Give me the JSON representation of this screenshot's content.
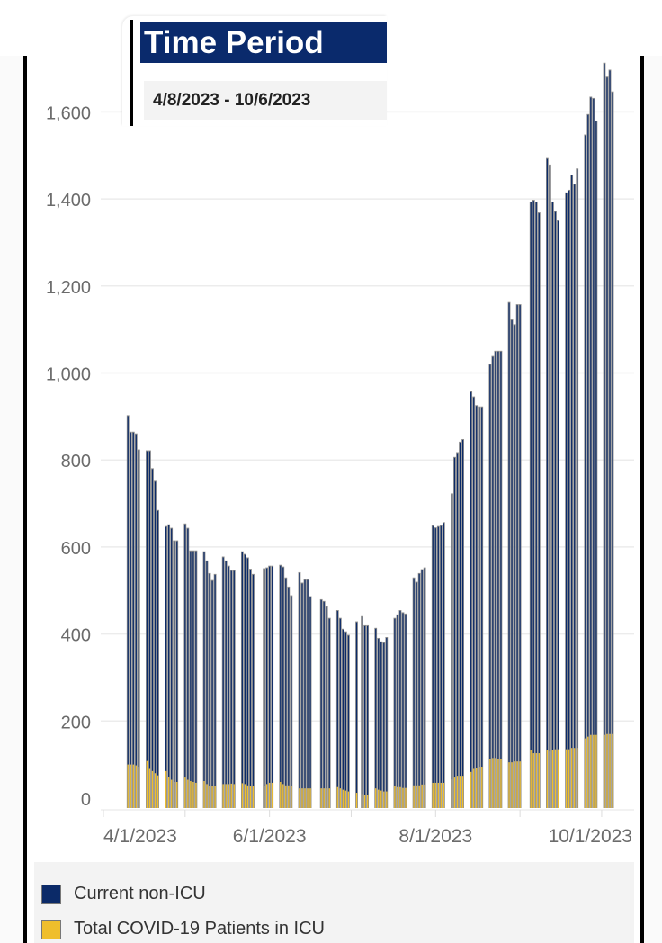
{
  "filter": {
    "title": "Time Period",
    "value": "4/8/2023 - 10/6/2023"
  },
  "colors": {
    "non_icu": "#0b2a68",
    "icu": "#efbe2c",
    "bar_edge": "#8c8c8c"
  },
  "chart_data": {
    "type": "bar",
    "stacked": true,
    "title": "",
    "xlabel": "",
    "ylabel": "",
    "ylim": [
      0,
      1700
    ],
    "grid": true,
    "legend_position": "bottom",
    "y_ticks": [
      0,
      200,
      400,
      600,
      800,
      1000,
      1200,
      1400,
      1600
    ],
    "y_tick_labels": [
      "0",
      "200",
      "400",
      "600",
      "800",
      "1,000",
      "1,200",
      "1,400",
      "1,600"
    ],
    "x_tick_dates": [
      "2023-04-01",
      "2023-05-01",
      "2023-06-01",
      "2023-07-01",
      "2023-08-01",
      "2023-09-01",
      "2023-10-01"
    ],
    "x_tick_labels": [
      "4/1/2023",
      "",
      "6/1/2023",
      "",
      "8/1/2023",
      "",
      "10/1/2023"
    ],
    "series": [
      {
        "name": "Current non-ICU",
        "key": "non_icu"
      },
      {
        "name": "Total COVID-19 Patients in ICU",
        "key": "icu"
      }
    ],
    "points": [
      {
        "date": "2023-04-10",
        "non_icu": 803,
        "icu": 100
      },
      {
        "date": "2023-04-11",
        "non_icu": 765,
        "icu": 100
      },
      {
        "date": "2023-04-12",
        "non_icu": 765,
        "icu": 100
      },
      {
        "date": "2023-04-13",
        "non_icu": 763,
        "icu": 98
      },
      {
        "date": "2023-04-14",
        "non_icu": 729,
        "icu": 95
      },
      {
        "date": "2023-04-17",
        "non_icu": 714,
        "icu": 108
      },
      {
        "date": "2023-04-18",
        "non_icu": 732,
        "icu": 90
      },
      {
        "date": "2023-04-19",
        "non_icu": 696,
        "icu": 85
      },
      {
        "date": "2023-04-20",
        "non_icu": 672,
        "icu": 80
      },
      {
        "date": "2023-04-21",
        "non_icu": 610,
        "icu": 75
      },
      {
        "date": "2023-04-24",
        "non_icu": 563,
        "icu": 85
      },
      {
        "date": "2023-04-25",
        "non_icu": 580,
        "icu": 72
      },
      {
        "date": "2023-04-26",
        "non_icu": 579,
        "icu": 65
      },
      {
        "date": "2023-04-27",
        "non_icu": 555,
        "icu": 60
      },
      {
        "date": "2023-04-28",
        "non_icu": 555,
        "icu": 60
      },
      {
        "date": "2023-05-01",
        "non_icu": 584,
        "icu": 70
      },
      {
        "date": "2023-05-02",
        "non_icu": 579,
        "icu": 65
      },
      {
        "date": "2023-05-03",
        "non_icu": 530,
        "icu": 62
      },
      {
        "date": "2023-05-04",
        "non_icu": 532,
        "icu": 60
      },
      {
        "date": "2023-05-05",
        "non_icu": 534,
        "icu": 58
      },
      {
        "date": "2023-05-08",
        "non_icu": 528,
        "icu": 62
      },
      {
        "date": "2023-05-09",
        "non_icu": 514,
        "icu": 55
      },
      {
        "date": "2023-05-10",
        "non_icu": 490,
        "icu": 50
      },
      {
        "date": "2023-05-11",
        "non_icu": 474,
        "icu": 50
      },
      {
        "date": "2023-05-12",
        "non_icu": 488,
        "icu": 50
      },
      {
        "date": "2023-05-15",
        "non_icu": 523,
        "icu": 55
      },
      {
        "date": "2023-05-16",
        "non_icu": 514,
        "icu": 55
      },
      {
        "date": "2023-05-17",
        "non_icu": 502,
        "icu": 55
      },
      {
        "date": "2023-05-18",
        "non_icu": 491,
        "icu": 56
      },
      {
        "date": "2023-05-19",
        "non_icu": 492,
        "icu": 55
      },
      {
        "date": "2023-05-22",
        "non_icu": 533,
        "icu": 57
      },
      {
        "date": "2023-05-23",
        "non_icu": 529,
        "icu": 55
      },
      {
        "date": "2023-05-24",
        "non_icu": 524,
        "icu": 52
      },
      {
        "date": "2023-05-25",
        "non_icu": 500,
        "icu": 50
      },
      {
        "date": "2023-05-26",
        "non_icu": 488,
        "icu": 50
      },
      {
        "date": "2023-05-30",
        "non_icu": 501,
        "icu": 50
      },
      {
        "date": "2023-05-31",
        "non_icu": 498,
        "icu": 55
      },
      {
        "date": "2023-06-01",
        "non_icu": 499,
        "icu": 58
      },
      {
        "date": "2023-06-02",
        "non_icu": 499,
        "icu": 58
      },
      {
        "date": "2023-06-05",
        "non_icu": 499,
        "icu": 60
      },
      {
        "date": "2023-06-06",
        "non_icu": 500,
        "icu": 55
      },
      {
        "date": "2023-06-07",
        "non_icu": 478,
        "icu": 52
      },
      {
        "date": "2023-06-08",
        "non_icu": 457,
        "icu": 52
      },
      {
        "date": "2023-06-09",
        "non_icu": 439,
        "icu": 50
      },
      {
        "date": "2023-06-12",
        "non_icu": 497,
        "icu": 45
      },
      {
        "date": "2023-06-13",
        "non_icu": 473,
        "icu": 45
      },
      {
        "date": "2023-06-14",
        "non_icu": 481,
        "icu": 45
      },
      {
        "date": "2023-06-15",
        "non_icu": 481,
        "icu": 45
      },
      {
        "date": "2023-06-16",
        "non_icu": 442,
        "icu": 45
      },
      {
        "date": "2023-06-20",
        "non_icu": 435,
        "icu": 45
      },
      {
        "date": "2023-06-21",
        "non_icu": 431,
        "icu": 45
      },
      {
        "date": "2023-06-22",
        "non_icu": 419,
        "icu": 45
      },
      {
        "date": "2023-06-23",
        "non_icu": 392,
        "icu": 45
      },
      {
        "date": "2023-06-26",
        "non_icu": 407,
        "icu": 48
      },
      {
        "date": "2023-06-27",
        "non_icu": 392,
        "icu": 45
      },
      {
        "date": "2023-06-28",
        "non_icu": 370,
        "icu": 42
      },
      {
        "date": "2023-06-29",
        "non_icu": 366,
        "icu": 40
      },
      {
        "date": "2023-06-30",
        "non_icu": 360,
        "icu": 38
      },
      {
        "date": "2023-07-03",
        "non_icu": 394,
        "icu": 35
      },
      {
        "date": "2023-07-05",
        "non_icu": 409,
        "icu": 32
      },
      {
        "date": "2023-07-06",
        "non_icu": 390,
        "icu": 30
      },
      {
        "date": "2023-07-07",
        "non_icu": 390,
        "icu": 30
      },
      {
        "date": "2023-07-10",
        "non_icu": 369,
        "icu": 45
      },
      {
        "date": "2023-07-11",
        "non_icu": 349,
        "icu": 42
      },
      {
        "date": "2023-07-12",
        "non_icu": 343,
        "icu": 40
      },
      {
        "date": "2023-07-13",
        "non_icu": 343,
        "icu": 38
      },
      {
        "date": "2023-07-14",
        "non_icu": 355,
        "icu": 38
      },
      {
        "date": "2023-07-17",
        "non_icu": 387,
        "icu": 50
      },
      {
        "date": "2023-07-18",
        "non_icu": 397,
        "icu": 48
      },
      {
        "date": "2023-07-19",
        "non_icu": 407,
        "icu": 48
      },
      {
        "date": "2023-07-20",
        "non_icu": 404,
        "icu": 46
      },
      {
        "date": "2023-07-21",
        "non_icu": 401,
        "icu": 46
      },
      {
        "date": "2023-07-24",
        "non_icu": 478,
        "icu": 52
      },
      {
        "date": "2023-07-25",
        "non_icu": 468,
        "icu": 52
      },
      {
        "date": "2023-07-26",
        "non_icu": 488,
        "icu": 52
      },
      {
        "date": "2023-07-27",
        "non_icu": 495,
        "icu": 54
      },
      {
        "date": "2023-07-28",
        "non_icu": 499,
        "icu": 54
      },
      {
        "date": "2023-07-31",
        "non_icu": 592,
        "icu": 58
      },
      {
        "date": "2023-08-01",
        "non_icu": 587,
        "icu": 58
      },
      {
        "date": "2023-08-02",
        "non_icu": 590,
        "icu": 58
      },
      {
        "date": "2023-08-03",
        "non_icu": 592,
        "icu": 58
      },
      {
        "date": "2023-08-04",
        "non_icu": 599,
        "icu": 58
      },
      {
        "date": "2023-08-07",
        "non_icu": 657,
        "icu": 66
      },
      {
        "date": "2023-08-08",
        "non_icu": 737,
        "icu": 70
      },
      {
        "date": "2023-08-09",
        "non_icu": 744,
        "icu": 74
      },
      {
        "date": "2023-08-10",
        "non_icu": 768,
        "icu": 74
      },
      {
        "date": "2023-08-11",
        "non_icu": 774,
        "icu": 74
      },
      {
        "date": "2023-08-14",
        "non_icu": 875,
        "icu": 83
      },
      {
        "date": "2023-08-15",
        "non_icu": 856,
        "icu": 90
      },
      {
        "date": "2023-08-16",
        "non_icu": 833,
        "icu": 93
      },
      {
        "date": "2023-08-17",
        "non_icu": 828,
        "icu": 95
      },
      {
        "date": "2023-08-18",
        "non_icu": 828,
        "icu": 95
      },
      {
        "date": "2023-08-21",
        "non_icu": 909,
        "icu": 112
      },
      {
        "date": "2023-08-22",
        "non_icu": 924,
        "icu": 115
      },
      {
        "date": "2023-08-23",
        "non_icu": 936,
        "icu": 115
      },
      {
        "date": "2023-08-24",
        "non_icu": 939,
        "icu": 112
      },
      {
        "date": "2023-08-25",
        "non_icu": 939,
        "icu": 112
      },
      {
        "date": "2023-08-28",
        "non_icu": 1058,
        "icu": 105
      },
      {
        "date": "2023-08-29",
        "non_icu": 1018,
        "icu": 105
      },
      {
        "date": "2023-08-30",
        "non_icu": 1005,
        "icu": 107
      },
      {
        "date": "2023-08-31",
        "non_icu": 1051,
        "icu": 107
      },
      {
        "date": "2023-09-01",
        "non_icu": 1051,
        "icu": 107
      },
      {
        "date": "2023-09-05",
        "non_icu": 1261,
        "icu": 133
      },
      {
        "date": "2023-09-06",
        "non_icu": 1272,
        "icu": 126
      },
      {
        "date": "2023-09-07",
        "non_icu": 1268,
        "icu": 126
      },
      {
        "date": "2023-09-08",
        "non_icu": 1243,
        "icu": 126
      },
      {
        "date": "2023-09-11",
        "non_icu": 1361,
        "icu": 133
      },
      {
        "date": "2023-09-12",
        "non_icu": 1349,
        "icu": 130
      },
      {
        "date": "2023-09-13",
        "non_icu": 1261,
        "icu": 133
      },
      {
        "date": "2023-09-14",
        "non_icu": 1237,
        "icu": 135
      },
      {
        "date": "2023-09-15",
        "non_icu": 1216,
        "icu": 135
      },
      {
        "date": "2023-09-18",
        "non_icu": 1280,
        "icu": 135
      },
      {
        "date": "2023-09-19",
        "non_icu": 1286,
        "icu": 135
      },
      {
        "date": "2023-09-20",
        "non_icu": 1318,
        "icu": 138
      },
      {
        "date": "2023-09-21",
        "non_icu": 1297,
        "icu": 138
      },
      {
        "date": "2023-09-22",
        "non_icu": 1332,
        "icu": 138
      },
      {
        "date": "2023-09-25",
        "non_icu": 1388,
        "icu": 160
      },
      {
        "date": "2023-09-26",
        "non_icu": 1431,
        "icu": 164
      },
      {
        "date": "2023-09-27",
        "non_icu": 1467,
        "icu": 168
      },
      {
        "date": "2023-09-28",
        "non_icu": 1464,
        "icu": 168
      },
      {
        "date": "2023-09-29",
        "non_icu": 1412,
        "icu": 168
      },
      {
        "date": "2023-10-02",
        "non_icu": 1545,
        "icu": 168
      },
      {
        "date": "2023-10-03",
        "non_icu": 1511,
        "icu": 170
      },
      {
        "date": "2023-10-04",
        "non_icu": 1527,
        "icu": 170
      },
      {
        "date": "2023-10-05",
        "non_icu": 1477,
        "icu": 170
      }
    ]
  }
}
